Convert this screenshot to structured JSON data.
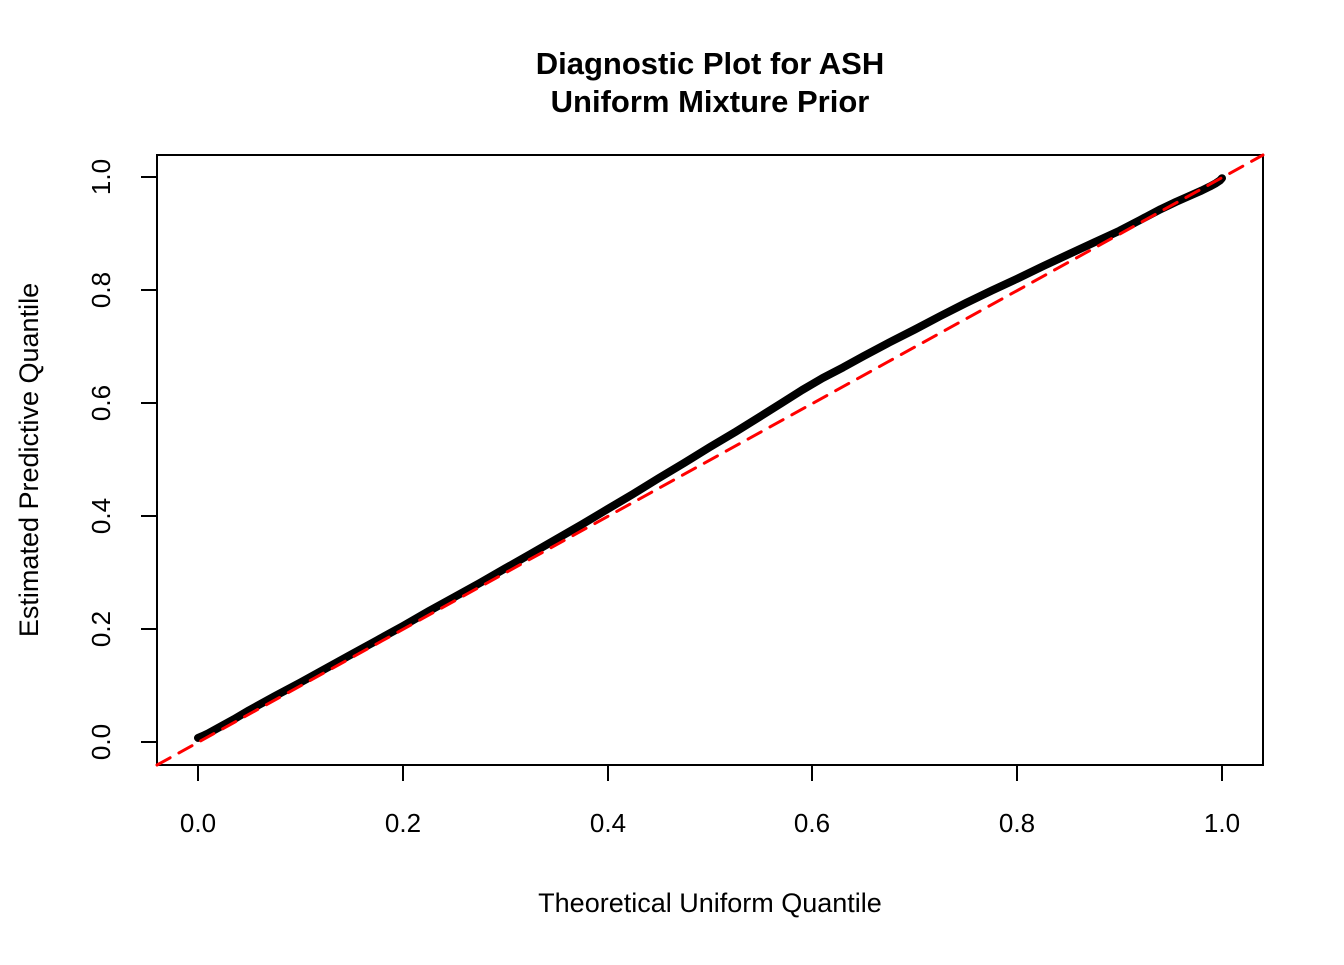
{
  "chart_data": {
    "type": "line",
    "title": "Diagnostic Plot for ASH\nUniform Mixture Prior",
    "title_lines": [
      "Diagnostic Plot for ASH",
      "Uniform Mixture Prior"
    ],
    "xlabel": "Theoretical Uniform Quantile",
    "ylabel": "Estimated Predictive Quantile",
    "xlim": [
      -0.04,
      1.04
    ],
    "ylim": [
      -0.04,
      1.04
    ],
    "x_ticks": [
      0.0,
      0.2,
      0.4,
      0.6,
      0.8,
      1.0
    ],
    "y_ticks": [
      0.0,
      0.2,
      0.4,
      0.6,
      0.8,
      1.0
    ],
    "x_tick_labels": [
      "0.0",
      "0.2",
      "0.4",
      "0.6",
      "0.8",
      "1.0"
    ],
    "y_tick_labels": [
      "0.0",
      "0.2",
      "0.4",
      "0.6",
      "0.8",
      "1.0"
    ],
    "grid": false,
    "legend": "none",
    "series": [
      {
        "name": "estimated-predictive-quantile-curve",
        "role": "data",
        "color": "#000000",
        "style": "solid",
        "line_width": 8,
        "points": [
          [
            0.0,
            0.008
          ],
          [
            0.004,
            0.011
          ],
          [
            0.01,
            0.016
          ],
          [
            0.02,
            0.026
          ],
          [
            0.035,
            0.041
          ],
          [
            0.05,
            0.057
          ],
          [
            0.075,
            0.082
          ],
          [
            0.1,
            0.106
          ],
          [
            0.125,
            0.131
          ],
          [
            0.15,
            0.156
          ],
          [
            0.175,
            0.181
          ],
          [
            0.2,
            0.206
          ],
          [
            0.225,
            0.232
          ],
          [
            0.25,
            0.257
          ],
          [
            0.275,
            0.282
          ],
          [
            0.3,
            0.308
          ],
          [
            0.325,
            0.334
          ],
          [
            0.35,
            0.36
          ],
          [
            0.375,
            0.386
          ],
          [
            0.4,
            0.413
          ],
          [
            0.425,
            0.44
          ],
          [
            0.45,
            0.468
          ],
          [
            0.475,
            0.495
          ],
          [
            0.5,
            0.523
          ],
          [
            0.525,
            0.55
          ],
          [
            0.55,
            0.578
          ],
          [
            0.57,
            0.601
          ],
          [
            0.59,
            0.624
          ],
          [
            0.61,
            0.645
          ],
          [
            0.63,
            0.664
          ],
          [
            0.65,
            0.684
          ],
          [
            0.675,
            0.708
          ],
          [
            0.7,
            0.731
          ],
          [
            0.725,
            0.755
          ],
          [
            0.75,
            0.778
          ],
          [
            0.775,
            0.8
          ],
          [
            0.8,
            0.821
          ],
          [
            0.825,
            0.843
          ],
          [
            0.85,
            0.864
          ],
          [
            0.875,
            0.885
          ],
          [
            0.9,
            0.906
          ],
          [
            0.92,
            0.925
          ],
          [
            0.94,
            0.944
          ],
          [
            0.955,
            0.957
          ],
          [
            0.97,
            0.969
          ],
          [
            0.98,
            0.977
          ],
          [
            0.988,
            0.984
          ],
          [
            0.994,
            0.99
          ],
          [
            0.998,
            0.995
          ],
          [
            1.0,
            0.999
          ]
        ]
      },
      {
        "name": "reference-line-y-equals-x",
        "role": "reference",
        "color": "#FF0000",
        "style": "dashed",
        "line_width": 3,
        "points": [
          [
            -0.04,
            -0.04
          ],
          [
            1.04,
            1.04
          ]
        ]
      }
    ]
  },
  "colors": {
    "curve": "#000000",
    "reference_line": "#FF0000",
    "background": "#FFFFFF",
    "box": "#000000"
  }
}
